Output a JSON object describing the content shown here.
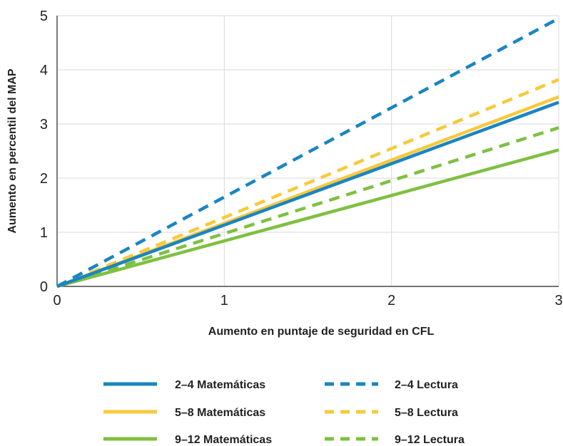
{
  "chart_data": {
    "type": "line",
    "xlabel": "Aumento en puntaje de seguridad en CFL",
    "ylabel": "Aumento en percentil del MAP",
    "xlim": [
      0,
      3
    ],
    "ylim": [
      0,
      5
    ],
    "xticks": [
      "0",
      "1",
      "2",
      "3"
    ],
    "yticks": [
      "0",
      "1",
      "2",
      "3",
      "4",
      "5"
    ],
    "grid": true,
    "legend_position": "bottom",
    "series": [
      {
        "name": "2–4 Matemáticas",
        "color": "#1a85c2",
        "dash": "solid",
        "x": [
          0,
          3
        ],
        "y": [
          0,
          3.4
        ]
      },
      {
        "name": "2–4 Lectura",
        "color": "#1a85c2",
        "dash": "dashed",
        "x": [
          0,
          3
        ],
        "y": [
          0,
          4.95
        ]
      },
      {
        "name": "5–8 Matemáticas",
        "color": "#f7c93c",
        "dash": "solid",
        "x": [
          0,
          3
        ],
        "y": [
          0,
          3.5
        ]
      },
      {
        "name": "5–8 Lectura",
        "color": "#f7c93c",
        "dash": "dashed",
        "x": [
          0,
          3
        ],
        "y": [
          0,
          3.82
        ]
      },
      {
        "name": "9–12 Matemáticas",
        "color": "#7fc041",
        "dash": "solid",
        "x": [
          0,
          3
        ],
        "y": [
          0,
          2.52
        ]
      },
      {
        "name": "9–12 Lectura",
        "color": "#7fc041",
        "dash": "dashed",
        "x": [
          0,
          3
        ],
        "y": [
          0,
          2.93
        ]
      }
    ]
  }
}
